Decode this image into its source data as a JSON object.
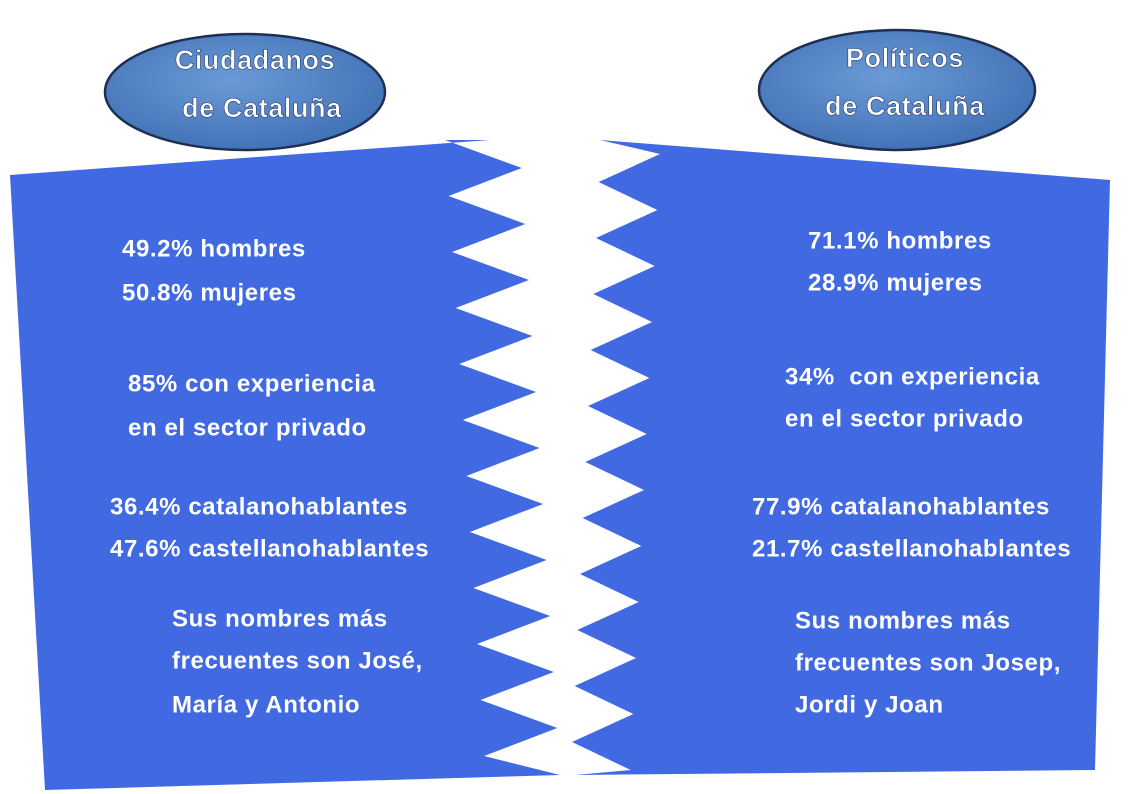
{
  "left": {
    "title": [
      "Ciudadanos",
      "de Cataluña"
    ],
    "blocks": [
      [
        "49.2% hombres",
        "50.8% mujeres"
      ],
      [
        "85% con experiencia",
        "en el sector privado"
      ],
      [
        "36.4% catalanohablantes",
        "47.6% castellanohablantes"
      ],
      [
        "Sus nombres más",
        "frecuentes son José,",
        "María y Antonio"
      ]
    ]
  },
  "right": {
    "title": [
      "Políticos",
      "de Cataluña"
    ],
    "blocks": [
      [
        "71.1% hombres",
        "28.9% mujeres"
      ],
      [
        "34%  con experiencia",
        "en el sector privado"
      ],
      [
        "77.9% catalanohablantes",
        "21.7% castellanohablantes"
      ],
      [
        "Sus nombres más",
        "frecuentes son Josep,",
        "Jordi y Joan"
      ]
    ]
  }
}
